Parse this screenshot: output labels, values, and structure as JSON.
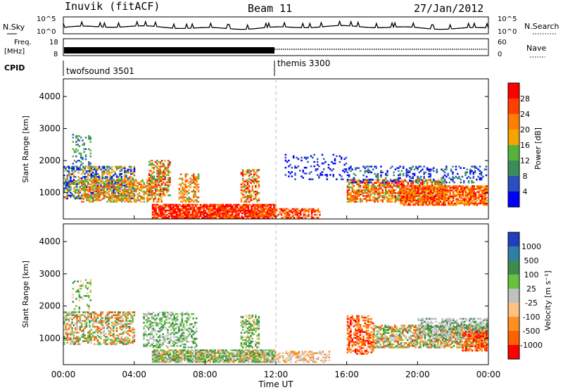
{
  "header": {
    "title": "Inuvik (fitACF)",
    "beam": "Beam 11",
    "date": "27/Jan/2012"
  },
  "noise_panel": {
    "left_label": "N.Sky",
    "right_label": "N.Search",
    "left_ticks": [
      "10^5",
      "10^0"
    ],
    "right_ticks": [
      "10^5",
      "10^0"
    ]
  },
  "freq_panel": {
    "left_label_line1": "Freq.",
    "left_label_line2": "[MHz]",
    "right_label": "Nave",
    "left_ticks": [
      "18",
      "8"
    ],
    "right_ticks": [
      "60",
      "0"
    ]
  },
  "cpid_panel": {
    "label": "CPID",
    "modes": [
      {
        "name": "twofsound 3501",
        "start_ut": 0
      },
      {
        "name": "themis 3300",
        "start_ut": 12
      }
    ]
  },
  "time_axis": {
    "label": "Time UT",
    "ticks": [
      "00:00",
      "04:00",
      "08:00",
      "12:00",
      "16:00",
      "20:00",
      "00:00"
    ]
  },
  "colors": {
    "power_scale": [
      "#0000ff",
      "#2a4fbf",
      "#3c8c5a",
      "#55b33c",
      "#f5a500",
      "#ff8000",
      "#ff4000",
      "#ff0000"
    ],
    "velocity_scale": [
      "#1f3fbf",
      "#2e7fa5",
      "#3e8c4c",
      "#66c23c",
      "#c0c0c0",
      "#ffc080",
      "#ff9020",
      "#ff6000",
      "#ff0000"
    ],
    "gap_dash": "#bbbbbb"
  },
  "chart_data": [
    {
      "type": "line",
      "title": "N.Sky / N.Search",
      "x_range_ut": [
        0,
        24
      ],
      "ylim_log": [
        0,
        5
      ]
    },
    {
      "type": "line",
      "title": "Freq. / Nave",
      "x_range_ut": [
        0,
        24
      ],
      "series": [
        {
          "name": "Freq.",
          "segments": [
            {
              "x": [
                0,
                12
              ],
              "y": 10.3
            },
            {
              "x": [
                12,
                24
              ],
              "y": 10.3
            }
          ]
        }
      ],
      "ylim": [
        8,
        18
      ],
      "ylim_right": [
        0,
        60
      ]
    },
    {
      "type": "heatmap",
      "panel": "power",
      "xlabel": "Time UT",
      "ylabel": "Slant Range [km]",
      "x_range_ut": [
        0,
        24
      ],
      "ylim": [
        180,
        4550
      ],
      "yticks": [
        1000,
        2000,
        3000,
        4000
      ],
      "colorbar_label": "Power [dB]",
      "colorbar_ticks": [
        "4",
        "8",
        "12",
        "16",
        "20",
        "24",
        "28"
      ]
    },
    {
      "type": "heatmap",
      "panel": "velocity",
      "xlabel": "Time UT",
      "ylabel": "Slant Range [km]",
      "x_range_ut": [
        0,
        24
      ],
      "ylim": [
        180,
        4550
      ],
      "yticks": [
        1000,
        2000,
        3000,
        4000
      ],
      "colorbar_label": "Velocity [m s⁻¹]",
      "colorbar_ticks": [
        "1000",
        "500",
        "100",
        "25",
        "-25",
        "-100",
        "-500",
        "-1000"
      ]
    }
  ]
}
